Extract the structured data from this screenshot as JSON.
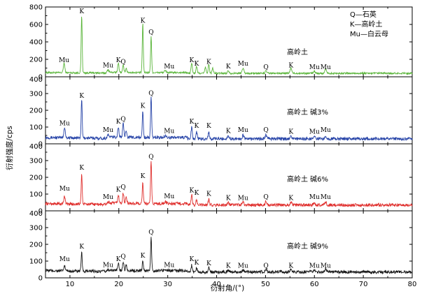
{
  "legend": [
    "Q—石英",
    "K—高岭土",
    "Mu—白云母"
  ],
  "chart_data": {
    "type": "line",
    "xlabel": "衍射角/(°)",
    "ylabel": "衍射强度/cps",
    "xlim": [
      5,
      80
    ],
    "x_ticks": [
      10,
      20,
      30,
      40,
      50,
      60,
      70,
      80
    ],
    "panels": [
      {
        "title": "高岭土",
        "color": "#5ab53a",
        "ylim": [
          0,
          800
        ],
        "y_ticks": [
          0,
          200,
          400,
          600,
          800
        ],
        "baseline": 40,
        "noise": 10,
        "peaks": [
          [
            8.8,
            110,
            0.35
          ],
          [
            12.4,
            660,
            0.25
          ],
          [
            17.8,
            40,
            0.4
          ],
          [
            19.9,
            110,
            0.3
          ],
          [
            20.9,
            80,
            0.3
          ],
          [
            21.5,
            50,
            0.3
          ],
          [
            24.9,
            560,
            0.25
          ],
          [
            26.6,
            420,
            0.25
          ],
          [
            29.5,
            20,
            0.5
          ],
          [
            34.9,
            120,
            0.3
          ],
          [
            35.9,
            80,
            0.3
          ],
          [
            37.7,
            70,
            0.3
          ],
          [
            38.4,
            100,
            0.3
          ],
          [
            39.2,
            60,
            0.3
          ],
          [
            42.4,
            30,
            0.4
          ],
          [
            45.4,
            60,
            0.4
          ],
          [
            50.1,
            25,
            0.4
          ],
          [
            55.2,
            60,
            0.4
          ],
          [
            60.0,
            25,
            0.4
          ],
          [
            62.3,
            50,
            0.4
          ]
        ],
        "labels": [
          {
            "text": "Mu",
            "x": 8.8,
            "y": 170
          },
          {
            "text": "K",
            "x": 12.4,
            "y": 730
          },
          {
            "text": "Mu",
            "x": 17.8,
            "y": 110
          },
          {
            "text": "K",
            "x": 19.9,
            "y": 170
          },
          {
            "text": "Q",
            "x": 20.9,
            "y": 150
          },
          {
            "text": "K",
            "x": 24.9,
            "y": 620
          },
          {
            "text": "Q",
            "x": 26.6,
            "y": 490
          },
          {
            "text": "Mu",
            "x": 30.3,
            "y": 95
          },
          {
            "text": "K",
            "x": 34.9,
            "y": 170
          },
          {
            "text": "K",
            "x": 35.9,
            "y": 130
          },
          {
            "text": "K",
            "x": 38.4,
            "y": 150
          },
          {
            "text": "K",
            "x": 42.4,
            "y": 95
          },
          {
            "text": "Mu",
            "x": 45.4,
            "y": 130
          },
          {
            "text": "Q",
            "x": 50.1,
            "y": 90
          },
          {
            "text": "K",
            "x": 55.2,
            "y": 110
          },
          {
            "text": "Mu",
            "x": 60.0,
            "y": 90
          },
          {
            "text": "Mu",
            "x": 62.3,
            "y": 90
          }
        ]
      },
      {
        "title": "高岭土 碱3%",
        "color": "#2744a8",
        "ylim": [
          0,
          400
        ],
        "y_ticks": [
          0,
          100,
          200,
          300,
          400
        ],
        "baseline": 30,
        "noise": 9,
        "peaks": [
          [
            8.9,
            60,
            0.35
          ],
          [
            12.4,
            230,
            0.25
          ],
          [
            17.8,
            20,
            0.4
          ],
          [
            19.9,
            60,
            0.3
          ],
          [
            20.9,
            80,
            0.3
          ],
          [
            21.5,
            45,
            0.3
          ],
          [
            24.9,
            160,
            0.25
          ],
          [
            26.6,
            240,
            0.25
          ],
          [
            29.5,
            12,
            0.5
          ],
          [
            34.9,
            70,
            0.3
          ],
          [
            35.9,
            40,
            0.3
          ],
          [
            38.4,
            40,
            0.3
          ],
          [
            42.4,
            18,
            0.4
          ],
          [
            45.4,
            20,
            0.4
          ],
          [
            50.1,
            25,
            0.4
          ],
          [
            55.2,
            20,
            0.4
          ],
          [
            60.0,
            15,
            0.4
          ],
          [
            62.3,
            20,
            0.4
          ]
        ],
        "labels": [
          {
            "text": "Mu",
            "x": 8.9,
            "y": 110
          },
          {
            "text": "K",
            "x": 12.4,
            "y": 275
          },
          {
            "text": "Mu",
            "x": 17.8,
            "y": 70
          },
          {
            "text": "K",
            "x": 19.9,
            "y": 120
          },
          {
            "text": "Q",
            "x": 20.9,
            "y": 135
          },
          {
            "text": "K",
            "x": 24.9,
            "y": 215
          },
          {
            "text": "Q",
            "x": 26.6,
            "y": 290
          },
          {
            "text": "Mu",
            "x": 30.3,
            "y": 65
          },
          {
            "text": "K",
            "x": 34.9,
            "y": 120
          },
          {
            "text": "K",
            "x": 35.9,
            "y": 95
          },
          {
            "text": "K",
            "x": 38.4,
            "y": 95
          },
          {
            "text": "K",
            "x": 42.4,
            "y": 65
          },
          {
            "text": "Mu",
            "x": 45.4,
            "y": 70
          },
          {
            "text": "Q",
            "x": 50.1,
            "y": 70
          },
          {
            "text": "K",
            "x": 55.2,
            "y": 60
          },
          {
            "text": "Mu",
            "x": 60.0,
            "y": 60
          },
          {
            "text": "Mu",
            "x": 62.3,
            "y": 70
          }
        ]
      },
      {
        "title": "高岭土 碱6%",
        "color": "#e0302e",
        "ylim": [
          0,
          400
        ],
        "y_ticks": [
          0,
          100,
          200,
          300,
          400
        ],
        "baseline": 35,
        "noise": 9,
        "peaks": [
          [
            8.9,
            45,
            0.35
          ],
          [
            12.4,
            180,
            0.25
          ],
          [
            17.8,
            15,
            0.4
          ],
          [
            19.9,
            50,
            0.3
          ],
          [
            20.9,
            60,
            0.3
          ],
          [
            21.5,
            40,
            0.3
          ],
          [
            24.9,
            130,
            0.25
          ],
          [
            26.6,
            260,
            0.25
          ],
          [
            29.5,
            10,
            0.5
          ],
          [
            34.9,
            60,
            0.3
          ],
          [
            35.9,
            30,
            0.3
          ],
          [
            38.4,
            35,
            0.3
          ],
          [
            42.4,
            12,
            0.4
          ],
          [
            45.4,
            15,
            0.4
          ],
          [
            50.1,
            22,
            0.4
          ],
          [
            55.2,
            18,
            0.4
          ],
          [
            60.0,
            12,
            0.4
          ],
          [
            62.3,
            18,
            0.4
          ]
        ],
        "labels": [
          {
            "text": "Mu",
            "x": 8.9,
            "y": 120
          },
          {
            "text": "K",
            "x": 12.4,
            "y": 245
          },
          {
            "text": "Mu",
            "x": 17.8,
            "y": 70
          },
          {
            "text": "K",
            "x": 19.9,
            "y": 115
          },
          {
            "text": "Q",
            "x": 20.9,
            "y": 130
          },
          {
            "text": "K",
            "x": 24.9,
            "y": 195
          },
          {
            "text": "Q",
            "x": 26.6,
            "y": 310
          },
          {
            "text": "Mu",
            "x": 30.3,
            "y": 75
          },
          {
            "text": "K",
            "x": 34.9,
            "y": 110
          },
          {
            "text": "K",
            "x": 35.9,
            "y": 95
          },
          {
            "text": "K",
            "x": 38.4,
            "y": 90
          },
          {
            "text": "K",
            "x": 42.4,
            "y": 65
          },
          {
            "text": "Mu",
            "x": 45.4,
            "y": 65
          },
          {
            "text": "Q",
            "x": 50.1,
            "y": 70
          },
          {
            "text": "K",
            "x": 55.2,
            "y": 65
          },
          {
            "text": "Mu",
            "x": 60.0,
            "y": 70
          },
          {
            "text": "Mu",
            "x": 62.3,
            "y": 70
          }
        ]
      },
      {
        "title": "高岭土 碱9%",
        "color": "#1a1a1a",
        "ylim": [
          0,
          400
        ],
        "y_ticks": [
          0,
          100,
          200,
          300,
          400
        ],
        "baseline": 35,
        "noise": 9,
        "peaks": [
          [
            8.9,
            30,
            0.35
          ],
          [
            12.4,
            110,
            0.25
          ],
          [
            17.8,
            12,
            0.4
          ],
          [
            19.9,
            40,
            0.3
          ],
          [
            20.9,
            55,
            0.3
          ],
          [
            21.5,
            35,
            0.3
          ],
          [
            24.9,
            60,
            0.25
          ],
          [
            26.6,
            200,
            0.25
          ],
          [
            29.5,
            10,
            0.5
          ],
          [
            34.9,
            40,
            0.3
          ],
          [
            35.9,
            25,
            0.3
          ],
          [
            38.4,
            25,
            0.3
          ],
          [
            42.4,
            10,
            0.4
          ],
          [
            45.4,
            12,
            0.4
          ],
          [
            50.1,
            15,
            0.4
          ],
          [
            55.2,
            15,
            0.4
          ],
          [
            60.0,
            10,
            0.4
          ],
          [
            62.3,
            15,
            0.4
          ]
        ],
        "labels": [
          {
            "text": "Mu",
            "x": 8.9,
            "y": 100
          },
          {
            "text": "K",
            "x": 12.4,
            "y": 175
          },
          {
            "text": "Mu",
            "x": 17.8,
            "y": 65
          },
          {
            "text": "K",
            "x": 19.9,
            "y": 100
          },
          {
            "text": "Q",
            "x": 20.9,
            "y": 115
          },
          {
            "text": "K",
            "x": 24.9,
            "y": 120
          },
          {
            "text": "Q",
            "x": 26.6,
            "y": 260
          },
          {
            "text": "Mu",
            "x": 30.3,
            "y": 65
          },
          {
            "text": "K",
            "x": 34.9,
            "y": 100
          },
          {
            "text": "K",
            "x": 35.9,
            "y": 80
          },
          {
            "text": "K",
            "x": 38.4,
            "y": 75
          },
          {
            "text": "K",
            "x": 42.4,
            "y": 60
          },
          {
            "text": "Mu",
            "x": 45.4,
            "y": 60
          },
          {
            "text": "Q",
            "x": 50.1,
            "y": 60
          },
          {
            "text": "K",
            "x": 55.2,
            "y": 60
          },
          {
            "text": "Mu",
            "x": 60.0,
            "y": 60
          },
          {
            "text": "Mu",
            "x": 62.3,
            "y": 60
          }
        ]
      }
    ]
  }
}
